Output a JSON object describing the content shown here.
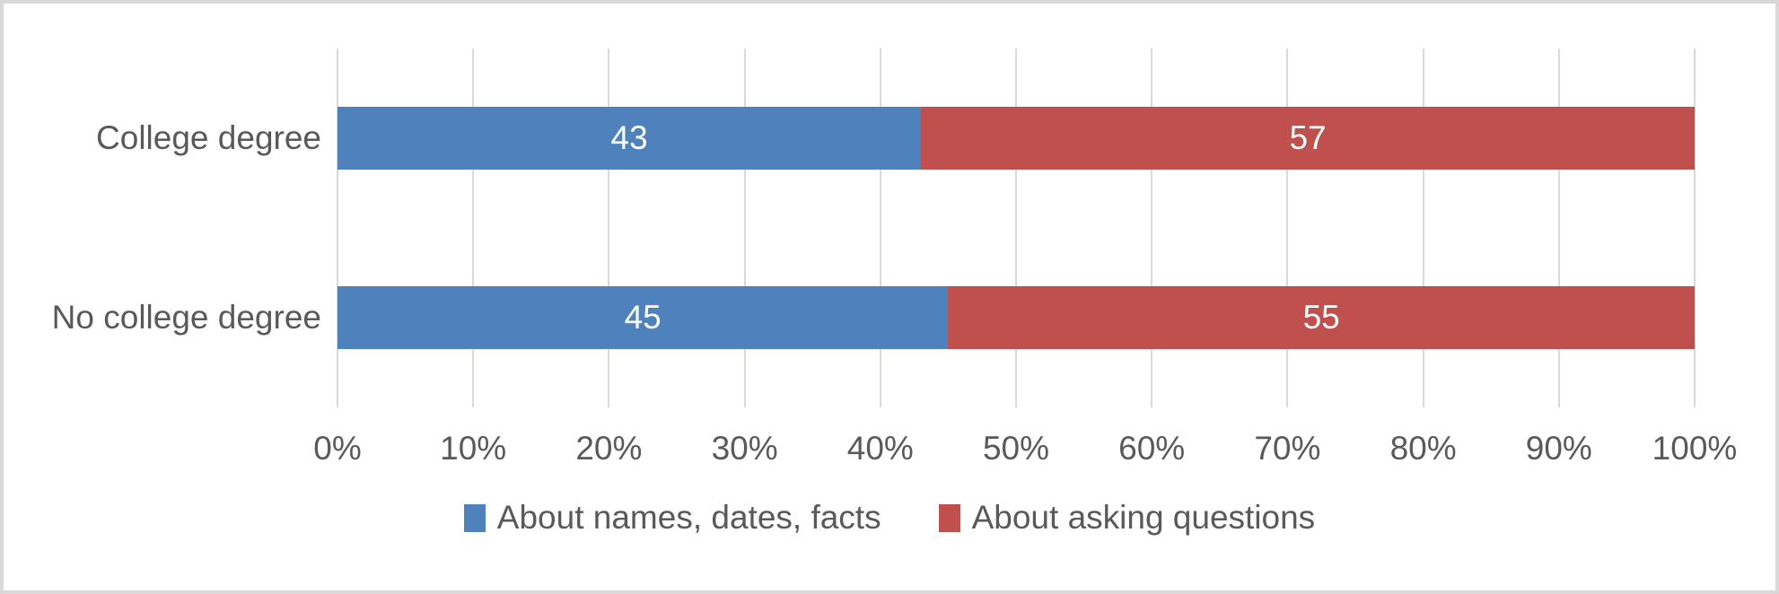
{
  "colors": {
    "series1": "#4F81BD",
    "series2": "#C0504D",
    "axis_text": "#595959",
    "gridline": "#D9D9D9",
    "figure_border": "#D9D7D8",
    "data_label_text": "#FFFFFF",
    "background": "#FFFFFF"
  },
  "chart_data": {
    "type": "bar",
    "orientation": "horizontal",
    "stacked": true,
    "title": "",
    "categories": [
      "College degree",
      "No college degree"
    ],
    "series": [
      {
        "name": "About names, dates, facts",
        "color": "#4F81BD",
        "values": [
          43,
          45
        ]
      },
      {
        "name": "About asking questions",
        "color": "#C0504D",
        "values": [
          57,
          55
        ]
      }
    ],
    "data_labels": [
      [
        "43",
        "57"
      ],
      [
        "45",
        "55"
      ]
    ],
    "x_tick_labels": [
      "0%",
      "10%",
      "20%",
      "30%",
      "40%",
      "50%",
      "60%",
      "70%",
      "80%",
      "90%",
      "100%"
    ],
    "xlim": [
      0,
      100
    ],
    "grid": "vertical-gridlines-on",
    "legend_position": "bottom-center"
  }
}
